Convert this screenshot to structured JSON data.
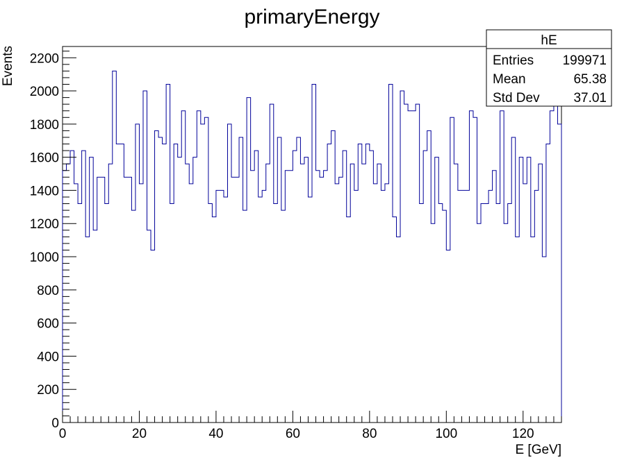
{
  "chart_data": {
    "type": "histogram",
    "title": "primaryEnergy",
    "xlabel": "E [GeV]",
    "ylabel": "Events",
    "xlim": [
      0,
      130
    ],
    "ylim": [
      0,
      2268
    ],
    "bin_width": 1,
    "x_ticks": [
      0,
      20,
      40,
      60,
      80,
      100,
      120
    ],
    "y_ticks": [
      0,
      200,
      400,
      600,
      800,
      1000,
      1200,
      1400,
      1600,
      1800,
      2000,
      2200
    ],
    "line_color": "#000099",
    "grid": false,
    "values": [
      1520,
      1560,
      1640,
      1440,
      1320,
      1640,
      1120,
      1600,
      1160,
      1480,
      1480,
      1320,
      1560,
      2120,
      1680,
      1680,
      1480,
      1480,
      1280,
      1800,
      1440,
      2000,
      1160,
      1040,
      1760,
      1720,
      1680,
      2040,
      1320,
      1680,
      1600,
      1880,
      1560,
      1440,
      1600,
      1880,
      1800,
      1840,
      1320,
      1240,
      1400,
      1400,
      1360,
      1800,
      1480,
      1480,
      1720,
      1280,
      1960,
      1520,
      1640,
      1360,
      1400,
      1560,
      1920,
      1320,
      1720,
      1280,
      1520,
      1520,
      1640,
      1720,
      1560,
      1600,
      1360,
      2040,
      1520,
      1480,
      1520,
      1680,
      1760,
      1440,
      1480,
      1640,
      1240,
      1560,
      1400,
      1680,
      1560,
      1680,
      1640,
      1440,
      1560,
      1400,
      1440,
      2040,
      1240,
      1120,
      2000,
      1920,
      1880,
      1880,
      1920,
      1320,
      1640,
      1760,
      1200,
      1600,
      1320,
      1280,
      1040,
      1840,
      1560,
      1400,
      1400,
      1400,
      1880,
      1840,
      1200,
      1320,
      1320,
      1400,
      1520,
      1320,
      1880,
      1200,
      1320,
      1720,
      1120,
      1600,
      1440,
      1600,
      1120,
      1400,
      1560,
      1000,
      1680,
      1880,
      1920,
      1800
    ],
    "stats_box": {
      "name": "hE",
      "rows": [
        {
          "label": "Entries",
          "value": "199971"
        },
        {
          "label": "Mean",
          "value": "65.38"
        },
        {
          "label": "Std Dev",
          "value": "37.01"
        }
      ]
    }
  }
}
